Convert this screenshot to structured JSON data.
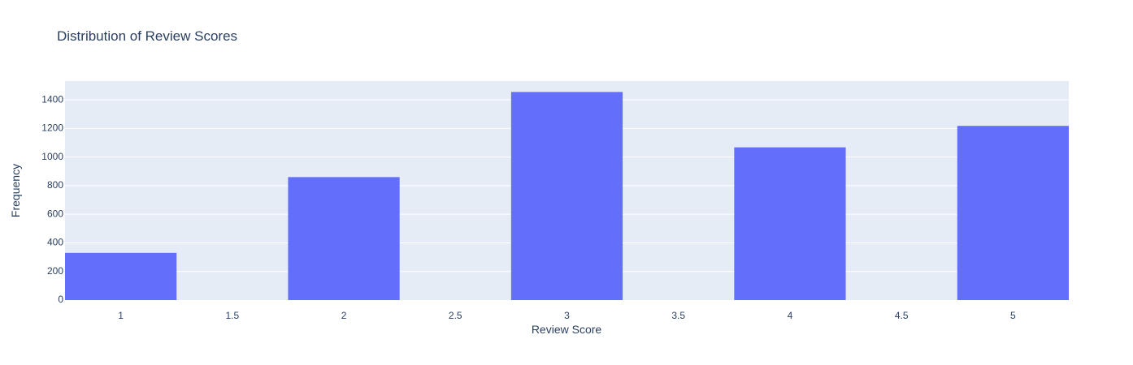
{
  "chart_data": {
    "type": "bar",
    "title": "Distribution of Review Scores",
    "xlabel": "Review Score",
    "ylabel": "Frequency",
    "x": [
      1,
      2,
      3,
      4,
      5
    ],
    "values": [
      330,
      860,
      1455,
      1068,
      1218
    ],
    "bar_width": 0.5,
    "xlim": [
      0.75,
      5.25
    ],
    "ylim": [
      0,
      1531
    ],
    "x_ticks": [
      1,
      1.5,
      2,
      2.5,
      3,
      3.5,
      4,
      4.5,
      5
    ],
    "x_tick_labels": [
      "1",
      "1.5",
      "2",
      "2.5",
      "3",
      "3.5",
      "4",
      "4.5",
      "5"
    ],
    "y_ticks": [
      0,
      200,
      400,
      600,
      800,
      1000,
      1200,
      1400
    ],
    "y_tick_labels": [
      "0",
      "200",
      "400",
      "600",
      "800",
      "1000",
      "1200",
      "1400"
    ],
    "grid": true,
    "legend": "none",
    "colors": {
      "bar": "#636efa",
      "plot_background": "#e5ecf6",
      "grid": "#ffffff",
      "text": "#2a3f5f"
    }
  }
}
